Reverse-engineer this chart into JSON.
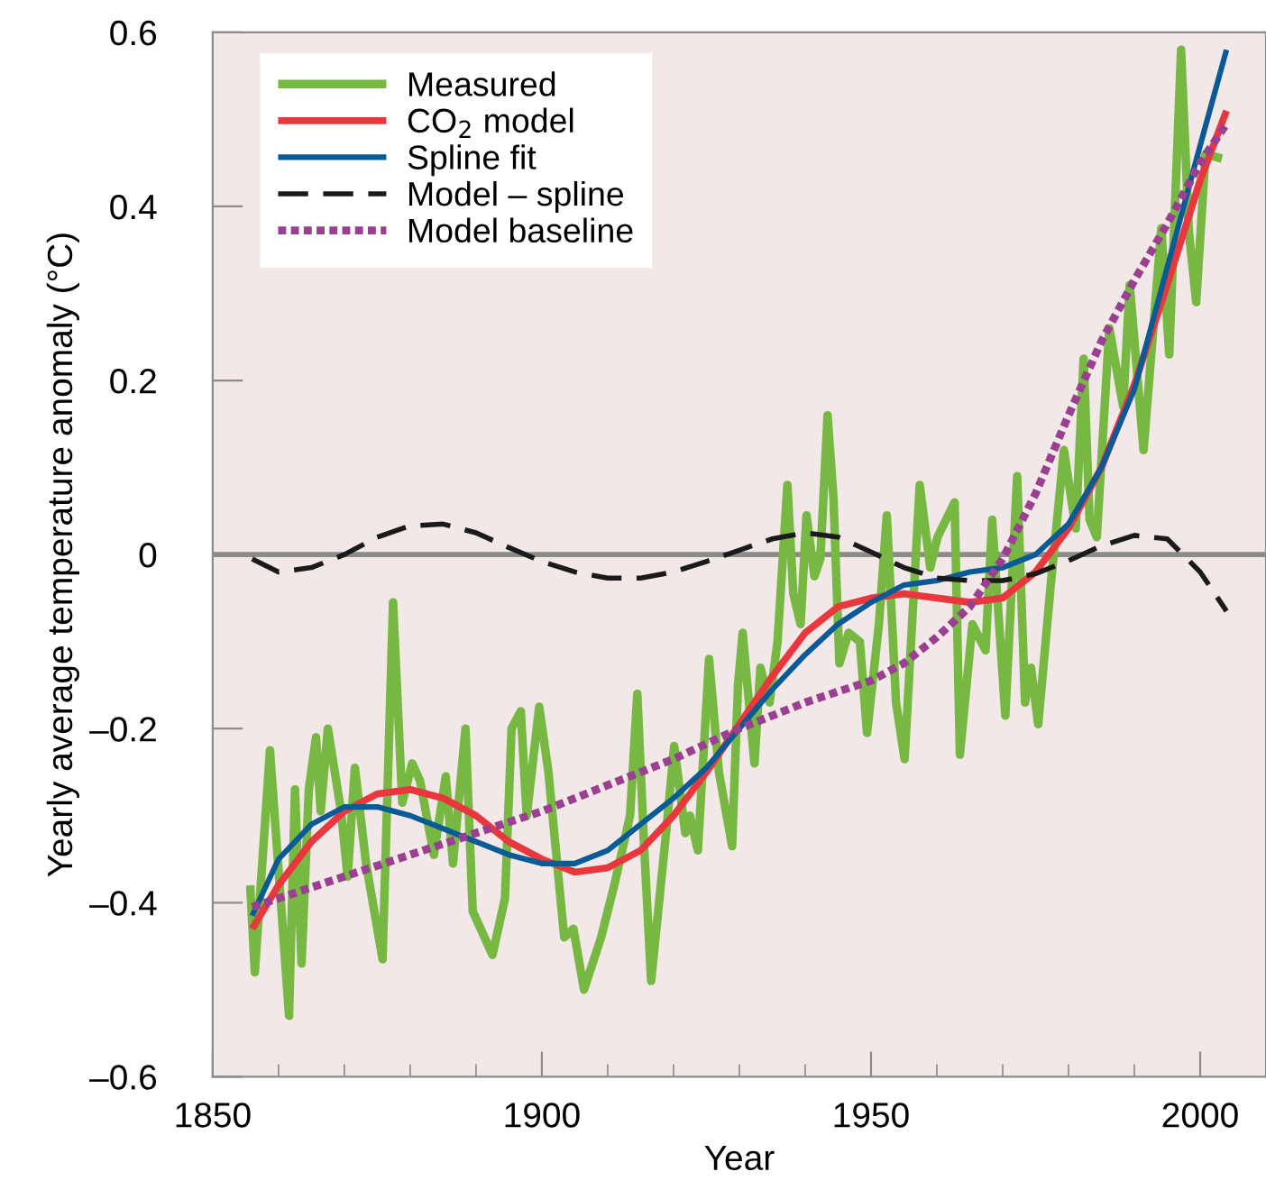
{
  "chart_data": {
    "type": "line",
    "xlabel": "Year",
    "ylabel": "Yearly average temperature anomaly (°C)",
    "xlim": [
      1850,
      2010
    ],
    "ylim": [
      -0.6,
      0.6
    ],
    "xticks": [
      1850,
      {
        "value": 1860,
        "label": null
      },
      {
        "value": 1870,
        "label": null
      },
      {
        "value": 1880,
        "label": null
      },
      {
        "value": 1890,
        "label": null
      },
      1900,
      {
        "value": 1910,
        "label": null
      },
      {
        "value": 1920,
        "label": null
      },
      {
        "value": 1930,
        "label": null
      },
      {
        "value": 1940,
        "label": null
      },
      1950,
      {
        "value": 1960,
        "label": null
      },
      {
        "value": 1970,
        "label": null
      },
      {
        "value": 1980,
        "label": null
      },
      {
        "value": 1990,
        "label": null
      },
      2000
    ],
    "yticks": [
      {
        "value": -0.6,
        "label": "–0.6"
      },
      {
        "value": -0.4,
        "label": "–0.4"
      },
      {
        "value": -0.2,
        "label": "–0.2"
      },
      0,
      0.2,
      0.4,
      0.6
    ],
    "grid": false,
    "legend": "top left",
    "ref_lines": [
      {
        "axis": "y",
        "value": 0,
        "color": "#8c8c8c"
      }
    ],
    "series": [
      {
        "name": "Measured",
        "color": "#77b843",
        "line_style": "solid",
        "x": [
          1855.7,
          1856.4,
          1858.7,
          1861.6,
          1862.5,
          1863.5,
          1864.6,
          1865.7,
          1866.4,
          1867.5,
          1869.5,
          1870.5,
          1871.6,
          1873.3,
          1875.8,
          1877.4,
          1878.8,
          1880.3,
          1881.5,
          1883.6,
          1885.4,
          1886.5,
          1888.4,
          1889.5,
          1892.5,
          1894.4,
          1895.4,
          1896.8,
          1897.7,
          1899.6,
          1901.0,
          1903.4,
          1904.8,
          1906.4,
          1909.0,
          1911.0,
          1913.4,
          1914.5,
          1915.5,
          1916.6,
          1919.0,
          1920.1,
          1921.8,
          1922.5,
          1923.7,
          1925.4,
          1926.9,
          1928.9,
          1929.8,
          1930.5,
          1932.3,
          1933.2,
          1934.6,
          1935.8,
          1937.3,
          1938.2,
          1939.3,
          1940.2,
          1941.4,
          1942.3,
          1943.4,
          1944.3,
          1945.2,
          1946.6,
          1948.3,
          1949.4,
          1951.2,
          1952.4,
          1953.8,
          1955.1,
          1957.4,
          1959.0,
          1960.1,
          1962.7,
          1963.5,
          1965.4,
          1967.4,
          1968.4,
          1970.4,
          1972.2,
          1973.4,
          1974.3,
          1975.4,
          1977.3,
          1979.3,
          1981.1,
          1982.3,
          1983.2,
          1984.3,
          1986.2,
          1988.3,
          1989.3,
          1991.4,
          1994.1,
          1995.3,
          1997.1,
          1998.3,
          1999.4,
          2000.8,
          2003.3
        ],
        "values": [
          -0.38,
          -0.48,
          -0.225,
          -0.53,
          -0.27,
          -0.47,
          -0.27,
          -0.21,
          -0.295,
          -0.2,
          -0.295,
          -0.37,
          -0.245,
          -0.355,
          -0.465,
          -0.055,
          -0.285,
          -0.24,
          -0.26,
          -0.345,
          -0.255,
          -0.355,
          -0.2,
          -0.41,
          -0.46,
          -0.395,
          -0.2,
          -0.18,
          -0.3,
          -0.175,
          -0.25,
          -0.44,
          -0.43,
          -0.5,
          -0.44,
          -0.38,
          -0.3,
          -0.16,
          -0.33,
          -0.49,
          -0.31,
          -0.22,
          -0.32,
          -0.3,
          -0.34,
          -0.12,
          -0.25,
          -0.335,
          -0.15,
          -0.09,
          -0.24,
          -0.13,
          -0.17,
          -0.1,
          0.08,
          -0.045,
          -0.08,
          0.045,
          -0.025,
          -0.005,
          0.16,
          0.065,
          -0.125,
          -0.09,
          -0.1,
          -0.205,
          -0.08,
          0.045,
          -0.17,
          -0.235,
          0.08,
          -0.015,
          0.02,
          0.06,
          -0.23,
          -0.08,
          -0.11,
          0.04,
          -0.185,
          0.09,
          -0.17,
          -0.13,
          -0.195,
          -0.035,
          0.12,
          0.03,
          0.225,
          0.04,
          0.02,
          0.26,
          0.17,
          0.31,
          0.12,
          0.375,
          0.23,
          0.58,
          0.37,
          0.29,
          0.46,
          0.455
        ]
      },
      {
        "name": "CO$_{2}$ model",
        "color": "#e8383d",
        "line_style": "solid",
        "x": [
          1856,
          1860,
          1865,
          1870,
          1875,
          1880,
          1885,
          1890,
          1895,
          1900,
          1905,
          1910,
          1915,
          1920,
          1925,
          1930,
          1935,
          1940,
          1945,
          1950,
          1955,
          1960,
          1965,
          1970,
          1975,
          1980,
          1985,
          1990,
          1995,
          2000,
          2004
        ],
        "values": [
          -0.43,
          -0.38,
          -0.33,
          -0.295,
          -0.275,
          -0.27,
          -0.28,
          -0.3,
          -0.33,
          -0.35,
          -0.365,
          -0.36,
          -0.34,
          -0.3,
          -0.25,
          -0.195,
          -0.14,
          -0.09,
          -0.06,
          -0.05,
          -0.045,
          -0.05,
          -0.055,
          -0.05,
          -0.02,
          0.03,
          0.1,
          0.195,
          0.31,
          0.43,
          0.51
        ]
      },
      {
        "name": "Spline fit",
        "color": "#0a5a96",
        "line_style": "solid",
        "x": [
          1856,
          1860,
          1865,
          1870,
          1875,
          1880,
          1885,
          1890,
          1895,
          1900,
          1905,
          1910,
          1915,
          1920,
          1925,
          1930,
          1935,
          1940,
          1945,
          1950,
          1955,
          1960,
          1965,
          1970,
          1975,
          1980,
          1985,
          1990,
          1995,
          2000,
          2004
        ],
        "values": [
          -0.415,
          -0.35,
          -0.31,
          -0.29,
          -0.29,
          -0.3,
          -0.315,
          -0.33,
          -0.345,
          -0.355,
          -0.355,
          -0.34,
          -0.31,
          -0.28,
          -0.245,
          -0.2,
          -0.155,
          -0.115,
          -0.08,
          -0.055,
          -0.035,
          -0.03,
          -0.02,
          -0.015,
          0.0,
          0.035,
          0.1,
          0.19,
          0.33,
          0.47,
          0.58
        ]
      },
      {
        "name": "Model – spline",
        "color": "#1a1a1a",
        "line_style": "dashed",
        "x": [
          1856,
          1860,
          1865,
          1870,
          1875,
          1880,
          1885,
          1890,
          1895,
          1900,
          1905,
          1910,
          1915,
          1920,
          1925,
          1930,
          1935,
          1940,
          1945,
          1950,
          1955,
          1960,
          1965,
          1970,
          1975,
          1980,
          1985,
          1990,
          1995,
          2000,
          2004
        ],
        "values": [
          -0.005,
          -0.02,
          -0.015,
          0.0,
          0.02,
          0.033,
          0.035,
          0.025,
          0.008,
          -0.008,
          -0.02,
          -0.027,
          -0.027,
          -0.02,
          -0.008,
          0.005,
          0.018,
          0.025,
          0.02,
          0.003,
          -0.015,
          -0.027,
          -0.03,
          -0.03,
          -0.022,
          -0.007,
          0.01,
          0.022,
          0.018,
          -0.02,
          -0.065
        ]
      },
      {
        "name": "Model baseline",
        "color": "#9b3f91",
        "line_style": "dotted",
        "x": [
          1856,
          1870,
          1880,
          1890,
          1900,
          1910,
          1920,
          1930,
          1940,
          1950,
          1955,
          1960,
          1965,
          1970,
          1975,
          1980,
          1985,
          1990,
          1995,
          2000,
          2004
        ],
        "values": [
          -0.405,
          -0.37,
          -0.345,
          -0.32,
          -0.295,
          -0.265,
          -0.235,
          -0.2,
          -0.17,
          -0.145,
          -0.125,
          -0.095,
          -0.06,
          -0.005,
          0.07,
          0.16,
          0.245,
          0.315,
          0.38,
          0.45,
          0.495
        ]
      }
    ]
  }
}
